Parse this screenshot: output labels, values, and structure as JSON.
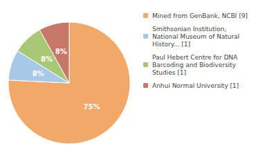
{
  "chart_data": {
    "type": "pie",
    "categories": [
      "Mined from GenBank, NCBI [9]",
      "Smithsonian Institution,\nNational Museum of Natural\nHistory... [1]",
      "Paul Hebert Centre for DNA\nBarcoding and Biodiversity\nStudies [1]",
      "Anhui Normal University [1]"
    ],
    "values": [
      75,
      8,
      8,
      8
    ],
    "value_labels": [
      "75%",
      "8%",
      "8%",
      "8%"
    ],
    "colors": [
      "#F2A868",
      "#A8C8E8",
      "#A8C878",
      "#C87868"
    ],
    "data_labels": true,
    "legend": "upper right"
  }
}
